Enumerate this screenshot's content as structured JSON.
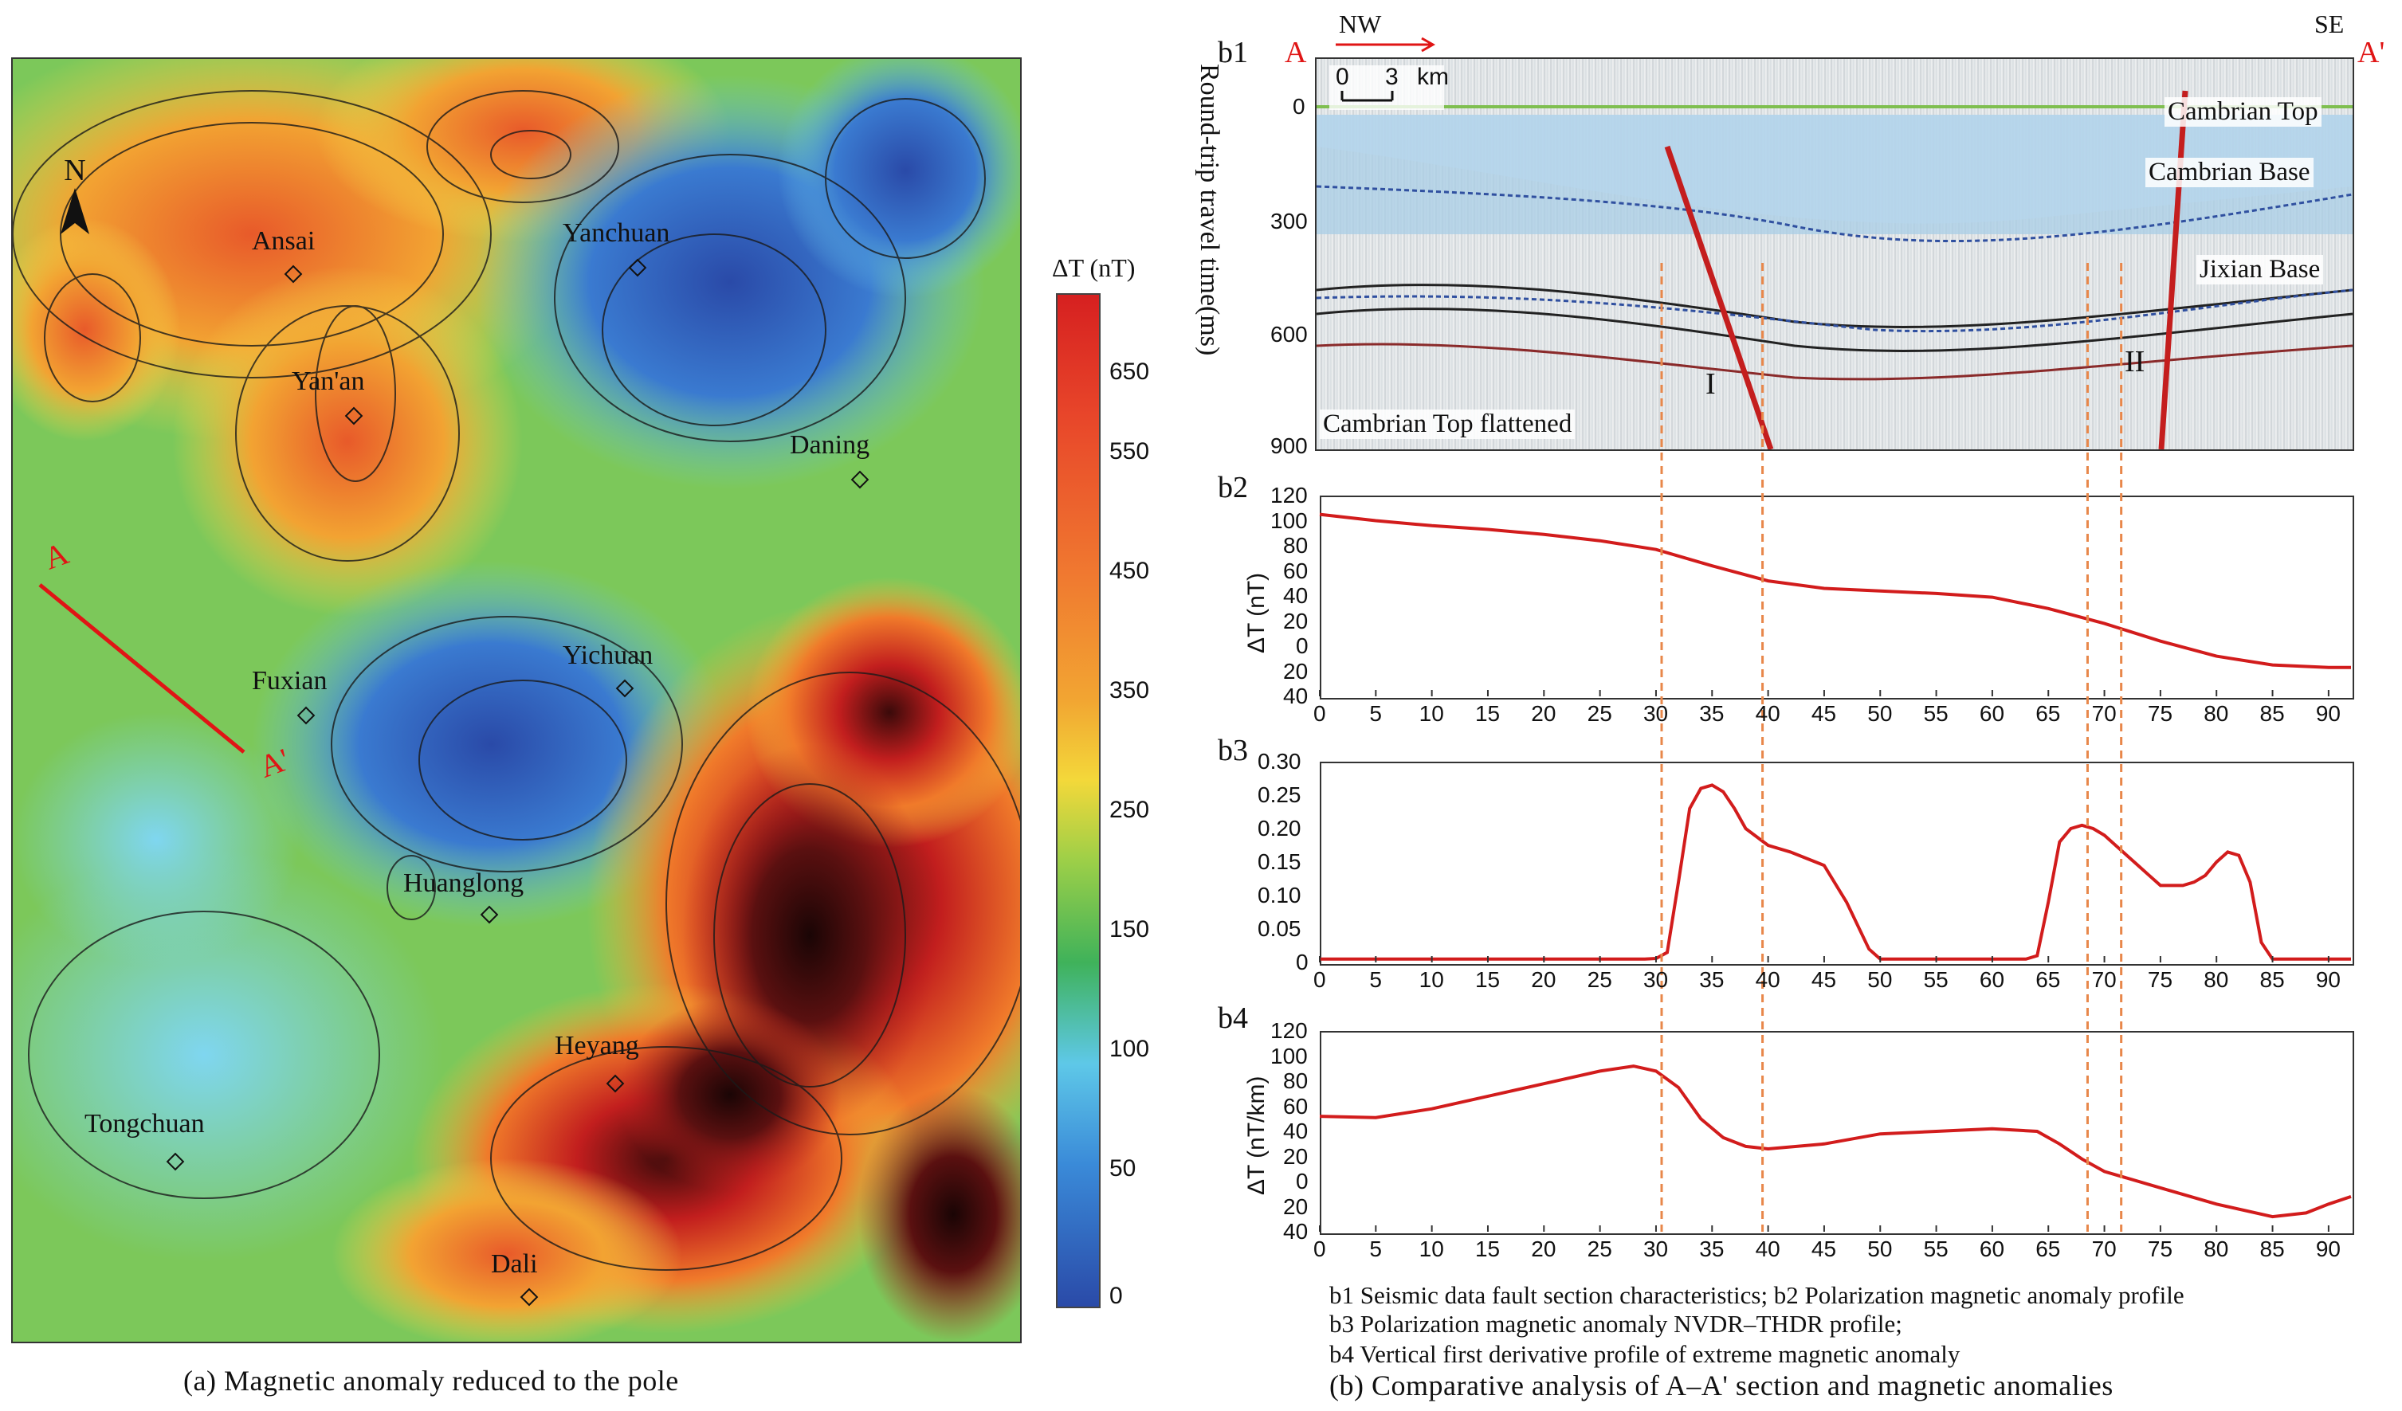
{
  "map": {
    "north_label": "N",
    "places": [
      {
        "name": "Ansai"
      },
      {
        "name": "Yanchuan"
      },
      {
        "name": "Yan'an"
      },
      {
        "name": "Daning"
      },
      {
        "name": "Fuxian"
      },
      {
        "name": "Yichuan"
      },
      {
        "name": "Huanglong"
      },
      {
        "name": "Heyang"
      },
      {
        "name": "Tongchuan"
      },
      {
        "name": "Dali"
      }
    ],
    "profile_start": "A",
    "profile_end": "A'",
    "colorbar": {
      "title": "ΔT (nT)",
      "ticks": [
        "650",
        "550",
        "450",
        "350",
        "250",
        "150",
        "100",
        "50",
        "0"
      ],
      "colors": [
        "#d62020",
        "#e85a2a",
        "#f08a30",
        "#f5b43a",
        "#f3dc3a",
        "#8ccb47",
        "#3fb25a",
        "#5ec8e8",
        "#3a7ad0",
        "#2a4aa8"
      ]
    },
    "caption": "(a) Magnetic anomaly reduced to the pole"
  },
  "right": {
    "b1": {
      "label": "b1",
      "start": "A",
      "end": "A'",
      "nw": "NW",
      "se": "SE",
      "scale": {
        "zero": "0",
        "three": "3",
        "unit": "km"
      },
      "ylabel": "Round-trip travel time(ms)",
      "yticks": [
        "0",
        "300",
        "600",
        "900"
      ],
      "horizons": [
        "Cambrian Top",
        "Cambrian Base",
        "Jixian Base"
      ],
      "note": "Cambrian Top flattened",
      "faults": [
        "I",
        "II"
      ]
    },
    "b2": {
      "label": "b2",
      "ylabel": "ΔT (nT)",
      "yticks": [
        "120",
        "100",
        "80",
        "60",
        "40",
        "20",
        "0",
        "20",
        "40"
      ]
    },
    "b3": {
      "label": "b3",
      "yticks": [
        "0.30",
        "0.25",
        "0.20",
        "0.15",
        "0.10",
        "0.05",
        "0"
      ]
    },
    "b4": {
      "label": "b4",
      "ylabel": "ΔT (nT/km)",
      "yticks": [
        "120",
        "100",
        "80",
        "60",
        "40",
        "20",
        "0",
        "20",
        "40"
      ]
    },
    "xticks": [
      "0",
      "5",
      "10",
      "15",
      "20",
      "25",
      "30",
      "35",
      "40",
      "45",
      "50",
      "55",
      "60",
      "65",
      "70",
      "75",
      "80",
      "85",
      "90"
    ],
    "legend": [
      "b1 Seismic data fault section characteristics; b2 Polarization magnetic anomaly profile",
      "b3 Polarization magnetic anomaly NVDR–THDR profile;",
      "b4 Vertical first derivative profile of extreme magnetic anomaly"
    ],
    "caption": "(b) Comparative analysis of A–A' section and magnetic anomalies"
  },
  "chart_data": [
    {
      "type": "line",
      "x": [
        0,
        5,
        10,
        15,
        20,
        25,
        30,
        35,
        40,
        45,
        50,
        55,
        60,
        65,
        70,
        75,
        80,
        85,
        90,
        92
      ],
      "series": [
        {
          "values": [
            105,
            100,
            96,
            93,
            89,
            84,
            77,
            64,
            52,
            46,
            44,
            42,
            39,
            30,
            18,
            4,
            -8,
            -15,
            -17,
            -17
          ]
        }
      ],
      "ylabel": "ΔT (nT)",
      "xlim": [
        0,
        92
      ],
      "ylim": [
        -40,
        120
      ]
    },
    {
      "type": "line",
      "x": [
        0,
        10,
        20,
        29,
        30,
        31,
        32,
        33,
        34,
        35,
        36,
        37,
        38,
        40,
        42,
        45,
        47,
        49,
        50,
        55,
        60,
        63,
        64,
        65,
        66,
        67,
        68,
        69,
        70,
        71,
        72,
        73,
        74,
        75,
        76,
        77,
        78,
        79,
        80,
        81,
        82,
        83,
        84,
        85,
        90,
        92
      ],
      "series": [
        {
          "values": [
            0.005,
            0.005,
            0.005,
            0.005,
            0.006,
            0.015,
            0.12,
            0.23,
            0.26,
            0.265,
            0.255,
            0.23,
            0.2,
            0.175,
            0.165,
            0.145,
            0.09,
            0.02,
            0.005,
            0.005,
            0.005,
            0.005,
            0.01,
            0.09,
            0.18,
            0.2,
            0.205,
            0.2,
            0.19,
            0.175,
            0.16,
            0.145,
            0.13,
            0.115,
            0.115,
            0.115,
            0.12,
            0.13,
            0.15,
            0.165,
            0.16,
            0.12,
            0.03,
            0.005,
            0.005,
            0.005
          ]
        }
      ],
      "xlim": [
        0,
        92
      ],
      "ylim": [
        0,
        0.3
      ]
    },
    {
      "type": "line",
      "x": [
        0,
        5,
        10,
        15,
        20,
        25,
        28,
        30,
        32,
        34,
        36,
        38,
        40,
        45,
        50,
        55,
        60,
        64,
        66,
        68,
        70,
        75,
        80,
        85,
        88,
        90,
        92
      ],
      "series": [
        {
          "values": [
            52,
            51,
            58,
            68,
            78,
            88,
            92,
            88,
            75,
            50,
            35,
            28,
            26,
            30,
            38,
            40,
            42,
            40,
            30,
            18,
            8,
            -5,
            -18,
            -28,
            -25,
            -18,
            -12
          ]
        }
      ],
      "ylabel": "ΔT (nT/km)",
      "xlim": [
        0,
        92
      ],
      "ylim": [
        -40,
        120
      ]
    }
  ]
}
